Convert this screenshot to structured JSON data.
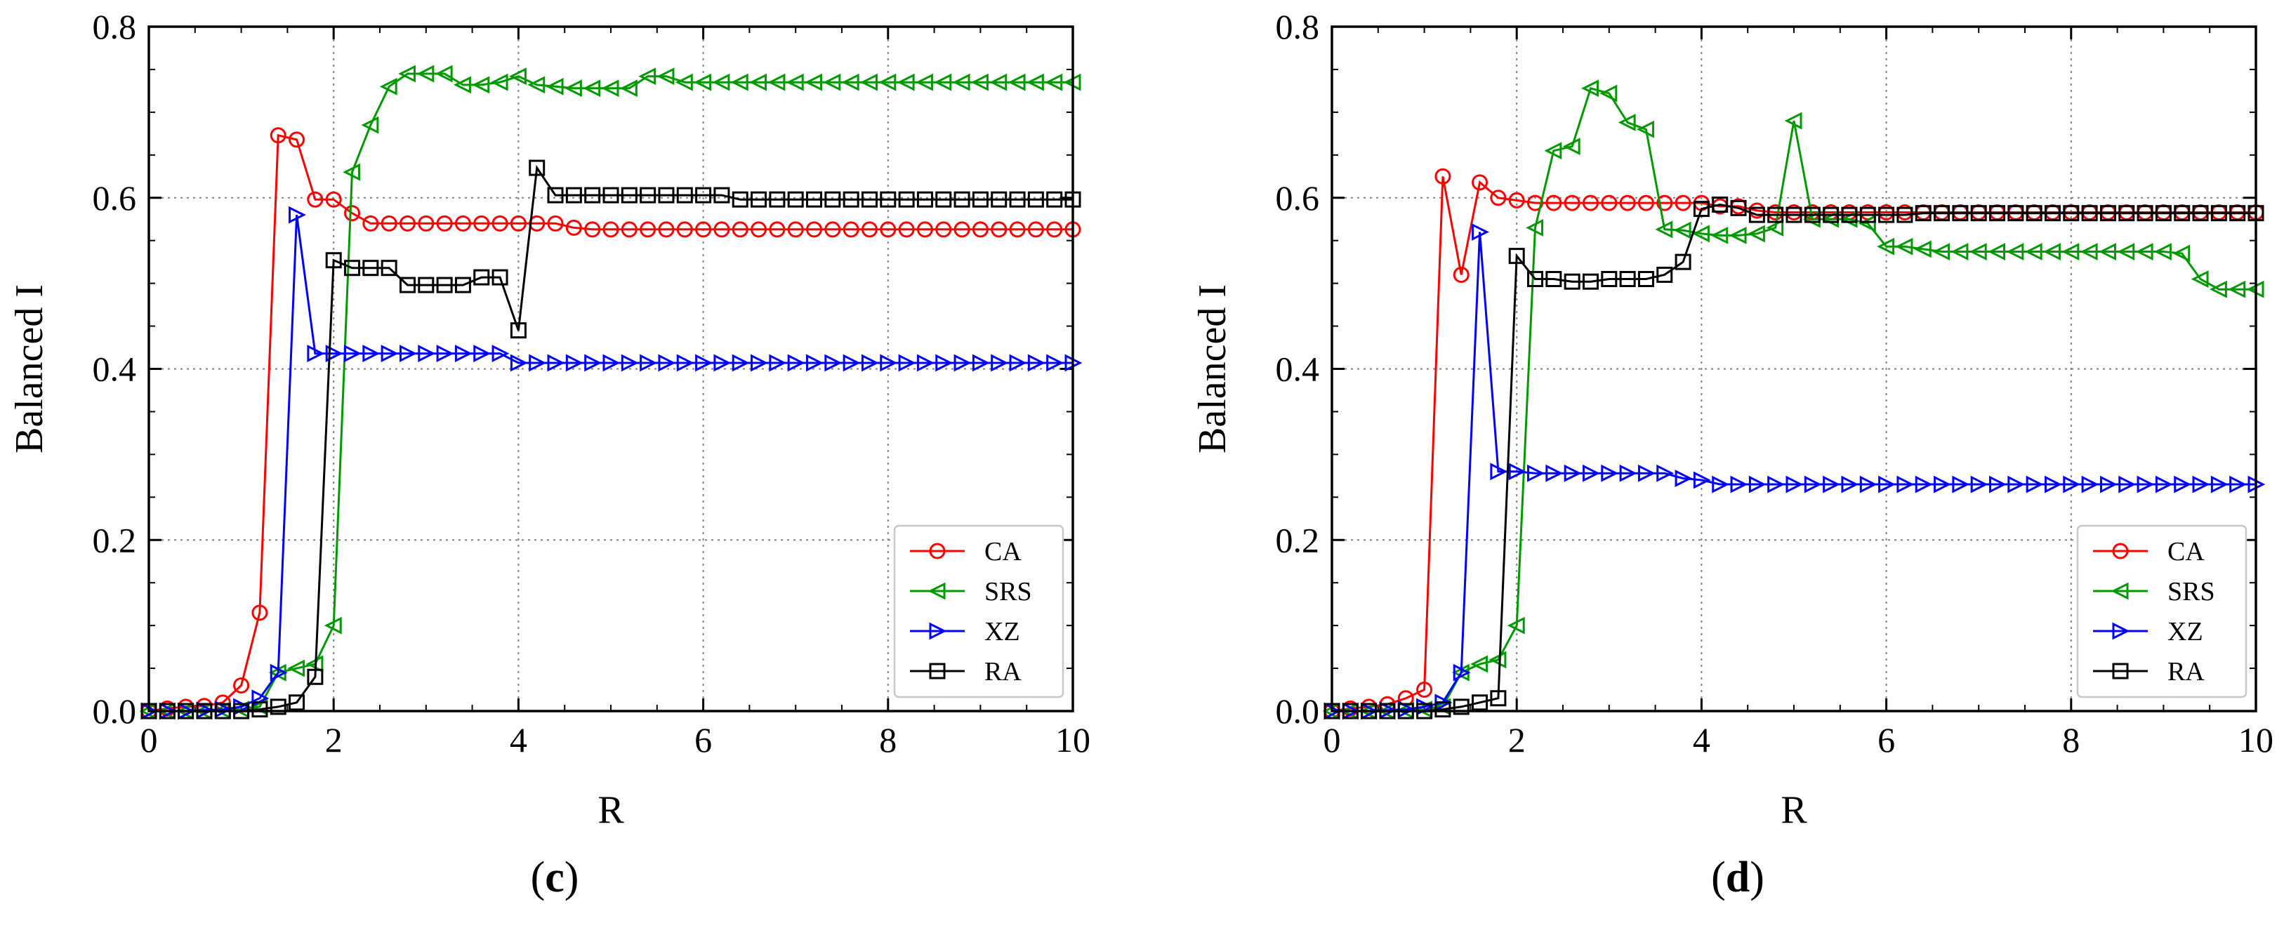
{
  "chart_data": [
    {
      "type": "line",
      "panel_label": "(c)",
      "xlabel": "R",
      "ylabel": "Balanced I",
      "xlim": [
        0,
        10
      ],
      "ylim": [
        0,
        0.8
      ],
      "xticks": [
        0,
        2,
        4,
        6,
        8,
        10
      ],
      "yticks": [
        0.0,
        0.2,
        0.4,
        0.6,
        0.8
      ],
      "xtick_labels": [
        "0",
        "2",
        "4",
        "6",
        "8",
        "10"
      ],
      "ytick_labels": [
        "0.0",
        "0.2",
        "0.4",
        "0.6",
        "0.8"
      ],
      "grid": true,
      "legend_position": "lower-right",
      "x": [
        0,
        0.2,
        0.4,
        0.6,
        0.8,
        1.0,
        1.2,
        1.4,
        1.6,
        1.8,
        2.0,
        2.2,
        2.4,
        2.6,
        2.8,
        3.0,
        3.2,
        3.4,
        3.6,
        3.8,
        4.0,
        4.2,
        4.4,
        4.6,
        4.8,
        5.0,
        5.2,
        5.4,
        5.6,
        5.8,
        6.0,
        6.2,
        6.4,
        6.6,
        6.8,
        7.0,
        7.2,
        7.4,
        7.6,
        7.8,
        8.0,
        8.2,
        8.4,
        8.6,
        8.8,
        9.0,
        9.2,
        9.4,
        9.6,
        9.8,
        10.0
      ],
      "series": [
        {
          "name": "CA",
          "color": "#ff0000",
          "marker": "circle",
          "values": [
            0.0,
            0.003,
            0.005,
            0.006,
            0.01,
            0.03,
            0.115,
            0.673,
            0.668,
            0.598,
            0.598,
            0.582,
            0.57,
            0.57,
            0.57,
            0.57,
            0.57,
            0.57,
            0.57,
            0.57,
            0.57,
            0.57,
            0.57,
            0.565,
            0.563,
            0.563,
            0.563,
            0.563,
            0.563,
            0.563,
            0.563,
            0.563,
            0.563,
            0.563,
            0.563,
            0.563,
            0.563,
            0.563,
            0.563,
            0.563,
            0.563,
            0.563,
            0.563,
            0.563,
            0.563,
            0.563,
            0.563,
            0.563,
            0.563,
            0.563,
            0.563
          ]
        },
        {
          "name": "SRS",
          "color": "#009a00",
          "marker": "triangle-left",
          "values": [
            0.0,
            0.0,
            0.0,
            0.0,
            0.001,
            0.002,
            0.005,
            0.045,
            0.05,
            0.055,
            0.1,
            0.63,
            0.685,
            0.73,
            0.745,
            0.745,
            0.745,
            0.732,
            0.732,
            0.735,
            0.742,
            0.732,
            0.73,
            0.728,
            0.728,
            0.728,
            0.728,
            0.742,
            0.742,
            0.735,
            0.735,
            0.735,
            0.735,
            0.735,
            0.735,
            0.735,
            0.735,
            0.735,
            0.735,
            0.735,
            0.735,
            0.735,
            0.735,
            0.735,
            0.735,
            0.735,
            0.735,
            0.735,
            0.735,
            0.735,
            0.735
          ]
        },
        {
          "name": "XZ",
          "color": "#0000ff",
          "marker": "triangle-right",
          "values": [
            0.0,
            0.0,
            0.0,
            0.001,
            0.002,
            0.005,
            0.015,
            0.045,
            0.58,
            0.418,
            0.418,
            0.418,
            0.418,
            0.418,
            0.418,
            0.418,
            0.418,
            0.418,
            0.418,
            0.418,
            0.407,
            0.407,
            0.407,
            0.407,
            0.407,
            0.407,
            0.407,
            0.407,
            0.407,
            0.407,
            0.407,
            0.407,
            0.407,
            0.407,
            0.407,
            0.407,
            0.407,
            0.407,
            0.407,
            0.407,
            0.407,
            0.407,
            0.407,
            0.407,
            0.407,
            0.407,
            0.407,
            0.407,
            0.407,
            0.407,
            0.407
          ]
        },
        {
          "name": "RA",
          "color": "#000000",
          "marker": "square",
          "values": [
            0.0,
            0.0,
            0.0,
            0.0,
            0.0,
            0.0,
            0.002,
            0.005,
            0.01,
            0.04,
            0.527,
            0.518,
            0.518,
            0.518,
            0.498,
            0.498,
            0.498,
            0.498,
            0.507,
            0.507,
            0.445,
            0.635,
            0.603,
            0.603,
            0.603,
            0.603,
            0.603,
            0.603,
            0.603,
            0.603,
            0.603,
            0.603,
            0.598,
            0.598,
            0.598,
            0.598,
            0.598,
            0.598,
            0.598,
            0.598,
            0.598,
            0.598,
            0.598,
            0.598,
            0.598,
            0.598,
            0.598,
            0.598,
            0.598,
            0.598,
            0.598
          ]
        }
      ]
    },
    {
      "type": "line",
      "panel_label": "(d)",
      "xlabel": "R",
      "ylabel": "Balanced I",
      "xlim": [
        0,
        10
      ],
      "ylim": [
        0,
        0.8
      ],
      "xticks": [
        0,
        2,
        4,
        6,
        8,
        10
      ],
      "yticks": [
        0.0,
        0.2,
        0.4,
        0.6,
        0.8
      ],
      "xtick_labels": [
        "0",
        "2",
        "4",
        "6",
        "8",
        "10"
      ],
      "ytick_labels": [
        "0.0",
        "0.2",
        "0.4",
        "0.6",
        "0.8"
      ],
      "grid": true,
      "legend_position": "lower-right",
      "x": [
        0,
        0.2,
        0.4,
        0.6,
        0.8,
        1.0,
        1.2,
        1.4,
        1.6,
        1.8,
        2.0,
        2.2,
        2.4,
        2.6,
        2.8,
        3.0,
        3.2,
        3.4,
        3.6,
        3.8,
        4.0,
        4.2,
        4.4,
        4.6,
        4.8,
        5.0,
        5.2,
        5.4,
        5.6,
        5.8,
        6.0,
        6.2,
        6.4,
        6.6,
        6.8,
        7.0,
        7.2,
        7.4,
        7.6,
        7.8,
        8.0,
        8.2,
        8.4,
        8.6,
        8.8,
        9.0,
        9.2,
        9.4,
        9.6,
        9.8,
        10.0
      ],
      "series": [
        {
          "name": "CA",
          "color": "#ff0000",
          "marker": "circle",
          "values": [
            0.0,
            0.003,
            0.005,
            0.008,
            0.015,
            0.025,
            0.625,
            0.51,
            0.618,
            0.6,
            0.597,
            0.594,
            0.594,
            0.594,
            0.594,
            0.594,
            0.594,
            0.594,
            0.594,
            0.594,
            0.594,
            0.59,
            0.59,
            0.585,
            0.583,
            0.583,
            0.583,
            0.583,
            0.583,
            0.583,
            0.583,
            0.583,
            0.583,
            0.583,
            0.583,
            0.583,
            0.583,
            0.583,
            0.583,
            0.583,
            0.583,
            0.583,
            0.583,
            0.583,
            0.583,
            0.583,
            0.583,
            0.583,
            0.583,
            0.583,
            0.583
          ]
        },
        {
          "name": "SRS",
          "color": "#009a00",
          "marker": "triangle-left",
          "values": [
            0.0,
            0.0,
            0.0,
            0.0,
            0.001,
            0.002,
            0.005,
            0.045,
            0.055,
            0.06,
            0.1,
            0.565,
            0.655,
            0.66,
            0.728,
            0.722,
            0.688,
            0.68,
            0.563,
            0.562,
            0.558,
            0.556,
            0.556,
            0.558,
            0.565,
            0.69,
            0.575,
            0.575,
            0.575,
            0.57,
            0.543,
            0.543,
            0.54,
            0.537,
            0.537,
            0.537,
            0.537,
            0.537,
            0.537,
            0.537,
            0.537,
            0.537,
            0.537,
            0.537,
            0.537,
            0.537,
            0.535,
            0.505,
            0.493,
            0.493,
            0.493
          ]
        },
        {
          "name": "XZ",
          "color": "#0000ff",
          "marker": "triangle-right",
          "values": [
            0.0,
            0.0,
            0.0,
            0.001,
            0.002,
            0.005,
            0.01,
            0.045,
            0.56,
            0.28,
            0.28,
            0.278,
            0.278,
            0.278,
            0.278,
            0.278,
            0.278,
            0.278,
            0.278,
            0.272,
            0.27,
            0.265,
            0.265,
            0.265,
            0.265,
            0.265,
            0.265,
            0.265,
            0.265,
            0.265,
            0.265,
            0.265,
            0.265,
            0.265,
            0.265,
            0.265,
            0.265,
            0.265,
            0.265,
            0.265,
            0.265,
            0.265,
            0.265,
            0.265,
            0.265,
            0.265,
            0.265,
            0.265,
            0.265,
            0.265,
            0.265
          ]
        },
        {
          "name": "RA",
          "color": "#000000",
          "marker": "square",
          "values": [
            0.0,
            0.0,
            0.0,
            0.0,
            0.0,
            0.0,
            0.002,
            0.005,
            0.01,
            0.015,
            0.532,
            0.505,
            0.505,
            0.502,
            0.502,
            0.505,
            0.505,
            0.505,
            0.51,
            0.525,
            0.587,
            0.592,
            0.588,
            0.58,
            0.58,
            0.58,
            0.58,
            0.58,
            0.58,
            0.58,
            0.58,
            0.58,
            0.582,
            0.582,
            0.582,
            0.582,
            0.582,
            0.582,
            0.582,
            0.582,
            0.582,
            0.582,
            0.582,
            0.582,
            0.582,
            0.582,
            0.582,
            0.582,
            0.582,
            0.582,
            0.582
          ]
        }
      ]
    }
  ]
}
